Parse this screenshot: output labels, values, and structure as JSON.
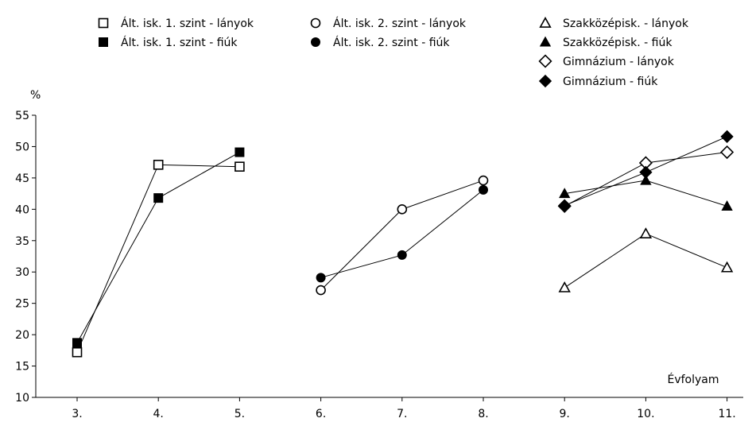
{
  "chart_data": {
    "type": "line",
    "title": "",
    "ylabel": "%",
    "xlabel": "Évfolyam",
    "ylim": [
      10,
      55
    ],
    "yticks": [
      10,
      15,
      20,
      25,
      30,
      35,
      40,
      45,
      50,
      55
    ],
    "categories": [
      "3.",
      "4.",
      "5.",
      "6.",
      "7.",
      "8.",
      "9.",
      "10.",
      "11."
    ],
    "grid": false,
    "series": [
      {
        "name": "Ált. isk. 1. szint - lányok",
        "marker": "square-open",
        "x": [
          "3.",
          "4.",
          "5."
        ],
        "values": [
          17.2,
          47.1,
          46.8
        ]
      },
      {
        "name": "Ált. isk. 1. szint - fiúk",
        "marker": "square-filled",
        "x": [
          "3.",
          "4.",
          "5."
        ],
        "values": [
          18.7,
          41.8,
          49.1
        ]
      },
      {
        "name": "Ált. isk. 2. szint - lányok",
        "marker": "circle-open",
        "x": [
          "6.",
          "7.",
          "8."
        ],
        "values": [
          27.1,
          40.0,
          44.6
        ]
      },
      {
        "name": "Ált. isk. 2. szint - fiúk",
        "marker": "circle-filled",
        "x": [
          "6.",
          "7.",
          "8."
        ],
        "values": [
          29.1,
          32.7,
          43.1
        ]
      },
      {
        "name": "Szakközépisk. - lányok",
        "marker": "triangle-open",
        "x": [
          "9.",
          "10.",
          "11."
        ],
        "values": [
          27.5,
          36.1,
          30.7
        ]
      },
      {
        "name": "Szakközépisk. - fiúk",
        "marker": "triangle-filled",
        "x": [
          "9.",
          "10.",
          "11."
        ],
        "values": [
          42.5,
          44.6,
          40.5
        ]
      },
      {
        "name": "Gimnázium - lányok",
        "marker": "diamond-open",
        "x": [
          "9.",
          "10.",
          "11."
        ],
        "values": [
          40.5,
          47.4,
          49.1
        ]
      },
      {
        "name": "Gimnázium - fiúk",
        "marker": "diamond-filled",
        "x": [
          "9.",
          "10.",
          "11."
        ],
        "values": [
          40.6,
          45.9,
          51.6
        ]
      }
    ]
  }
}
